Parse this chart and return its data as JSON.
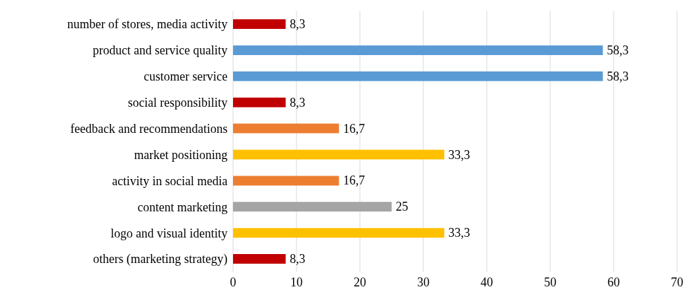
{
  "chart_data": {
    "type": "bar",
    "orientation": "horizontal",
    "categories": [
      "number of stores, media activity",
      "product and service quality",
      "customer service",
      "social responsibility",
      "feedback and recommendations",
      "market positioning",
      "activity in social media",
      "content marketing",
      "logo and visual identity",
      "others (marketing strategy)"
    ],
    "values": [
      8.3,
      58.3,
      58.3,
      8.3,
      16.7,
      33.3,
      16.7,
      25,
      33.3,
      8.3
    ],
    "colors": [
      "#c00000",
      "#5b9bd5",
      "#5b9bd5",
      "#c00000",
      "#ed7d31",
      "#ffc000",
      "#ed7d31",
      "#a5a5a5",
      "#ffc000",
      "#c00000"
    ],
    "value_labels": [
      "8,3",
      "58,3",
      "58,3",
      "8,3",
      "16,7",
      "33,3",
      "16,7",
      "25",
      "33,3",
      "8,3"
    ],
    "xlim": [
      0,
      70
    ],
    "xticks": [
      0,
      10,
      20,
      30,
      40,
      50,
      60,
      70
    ],
    "grid": "x"
  }
}
